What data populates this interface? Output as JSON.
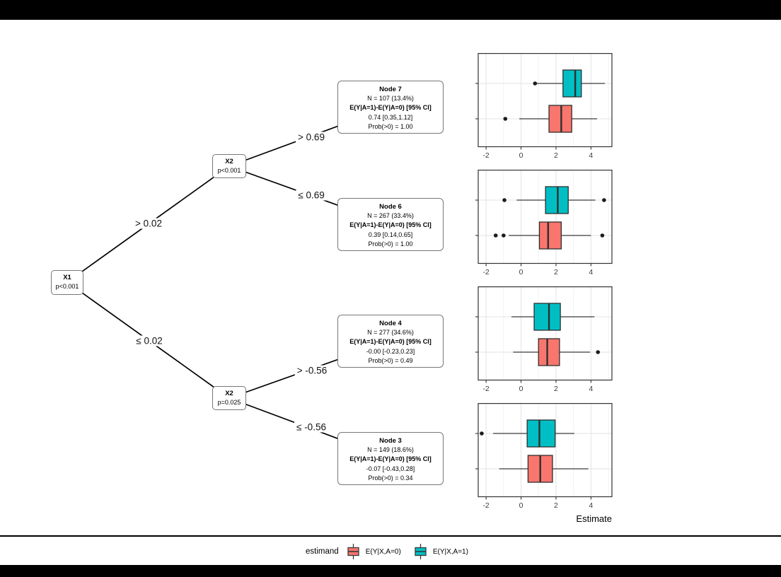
{
  "tree": {
    "splits": [
      {
        "label": "X1",
        "pvalue": "p<0.001"
      },
      {
        "label": "X2",
        "pvalue": "p<0.001"
      },
      {
        "label": "X2",
        "pvalue": "p=0.025"
      }
    ],
    "edge_labels": [
      "> 0.02",
      "≤ 0.02",
      "> 0.69",
      "≤ 0.69",
      "> -0.56",
      "≤ -0.56"
    ]
  },
  "nodes": [
    {
      "title": "Node 7",
      "n": "N = 107 (13.4%)",
      "estimand": "E(Y|A=1)-E(Y|A=0) [95% CI]",
      "estimate": "0.74 [0.35,1.12]",
      "prob": "Prob(>0) = 1.00"
    },
    {
      "title": "Node 6",
      "n": "N = 267 (33.4%)",
      "estimand": "E(Y|A=1)-E(Y|A=0) [95% CI]",
      "estimate": "0.39 [0.14,0.65]",
      "prob": "Prob(>0) = 1.00"
    },
    {
      "title": "Node 4",
      "n": "N = 277 (34.6%)",
      "estimand": "E(Y|A=1)-E(Y|A=0) [95% CI]",
      "estimate": "-0.00 [-0.23,0.23]",
      "prob": "Prob(>0) = 0.49"
    },
    {
      "title": "Node 3",
      "n": "N = 149 (18.6%)",
      "estimand": "E(Y|A=1)-E(Y|A=0) [95% CI]",
      "estimate": "-0.07 [-0.43,0.28]",
      "prob": "Prob(>0) = 0.34"
    }
  ],
  "chart_data": [
    {
      "type": "boxplot",
      "node": "Node 7",
      "orientation": "horizontal",
      "series": [
        {
          "name": "E(Y|X,A=1)",
          "color": "#00BFC4",
          "whisker_lo": 0.85,
          "q1": 2.4,
          "median": 3.1,
          "q3": 3.45,
          "whisker_hi": 4.8,
          "outliers": [
            0.8
          ]
        },
        {
          "name": "E(Y|X,A=0)",
          "color": "#F8766D",
          "whisker_lo": -0.1,
          "q1": 1.6,
          "median": 2.3,
          "q3": 2.9,
          "whisker_hi": 4.35,
          "outliers": [
            -0.9
          ]
        }
      ]
    },
    {
      "type": "boxplot",
      "node": "Node 6",
      "orientation": "horizontal",
      "series": [
        {
          "name": "E(Y|X,A=1)",
          "color": "#00BFC4",
          "whisker_lo": -0.25,
          "q1": 1.4,
          "median": 2.1,
          "q3": 2.7,
          "whisker_hi": 4.25,
          "outliers": [
            -0.95,
            4.75
          ]
        },
        {
          "name": "E(Y|X,A=0)",
          "color": "#F8766D",
          "whisker_lo": -0.7,
          "q1": 1.05,
          "median": 1.55,
          "q3": 2.3,
          "whisker_hi": 4.0,
          "outliers": [
            -1.45,
            -1.0,
            4.65
          ]
        }
      ]
    },
    {
      "type": "boxplot",
      "node": "Node 4",
      "orientation": "horizontal",
      "series": [
        {
          "name": "E(Y|X,A=1)",
          "color": "#00BFC4",
          "whisker_lo": -0.55,
          "q1": 0.75,
          "median": 1.6,
          "q3": 2.25,
          "whisker_hi": 4.2,
          "outliers": []
        },
        {
          "name": "E(Y|X,A=0)",
          "color": "#F8766D",
          "whisker_lo": -0.45,
          "q1": 1.0,
          "median": 1.5,
          "q3": 2.2,
          "whisker_hi": 3.95,
          "outliers": [
            4.4
          ]
        }
      ]
    },
    {
      "type": "boxplot",
      "node": "Node 3",
      "orientation": "horizontal",
      "series": [
        {
          "name": "E(Y|X,A=1)",
          "color": "#00BFC4",
          "whisker_lo": -1.6,
          "q1": 0.35,
          "median": 1.05,
          "q3": 1.95,
          "whisker_hi": 3.05,
          "outliers": [
            -2.25
          ]
        },
        {
          "name": "E(Y|X,A=0)",
          "color": "#F8766D",
          "whisker_lo": -1.25,
          "q1": 0.4,
          "median": 1.1,
          "q3": 1.8,
          "whisker_hi": 3.85,
          "outliers": []
        }
      ]
    }
  ],
  "axis": {
    "ticks": [
      -2,
      0,
      2,
      4
    ],
    "xlim": [
      -2.45,
      5.2
    ],
    "title": "Estimate",
    "grid": true
  },
  "legend": {
    "title": "estimand",
    "items": [
      {
        "label": "E(Y|X,A=0)",
        "color": "#F8766D"
      },
      {
        "label": "E(Y|X,A=1)",
        "color": "#00BFC4"
      }
    ]
  },
  "colors": {
    "treated": "#00BFC4",
    "control": "#F8766D",
    "box_border": "#2F2F2F",
    "whisker": "#3A3A3A",
    "outlier": "#1C1C1C",
    "panel_border": "#333333",
    "grid_major": "#E3E3E3",
    "grid_minor": "#F0F0F0",
    "edge_line": "#000000"
  }
}
